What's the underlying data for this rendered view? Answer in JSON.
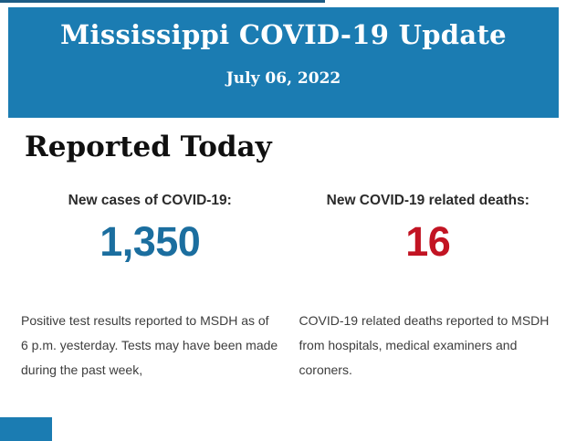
{
  "header": {
    "title": "Mississippi COVID-19 Update",
    "date": "July 06, 2022",
    "band_color": "#1b7cb2",
    "top_line_color": "#1d5c85",
    "text_color": "#ffffff"
  },
  "section": {
    "heading": "Reported Today"
  },
  "stats": {
    "cases": {
      "label": "New cases of COVID-19:",
      "value": "1,350",
      "value_color": "#1b6e9f",
      "description": "Positive test results reported to MSDH as of 6 p.m. yesterday. Tests may have been made during the past week,"
    },
    "deaths": {
      "label": "New COVID-19 related deaths:",
      "value": "16",
      "value_color": "#c21423",
      "description": "COVID-19 related deaths reported to MSDH from hospitals, medical examiners and coroners."
    }
  },
  "footer": {
    "next_section_band_color": "#1b7cb2"
  }
}
